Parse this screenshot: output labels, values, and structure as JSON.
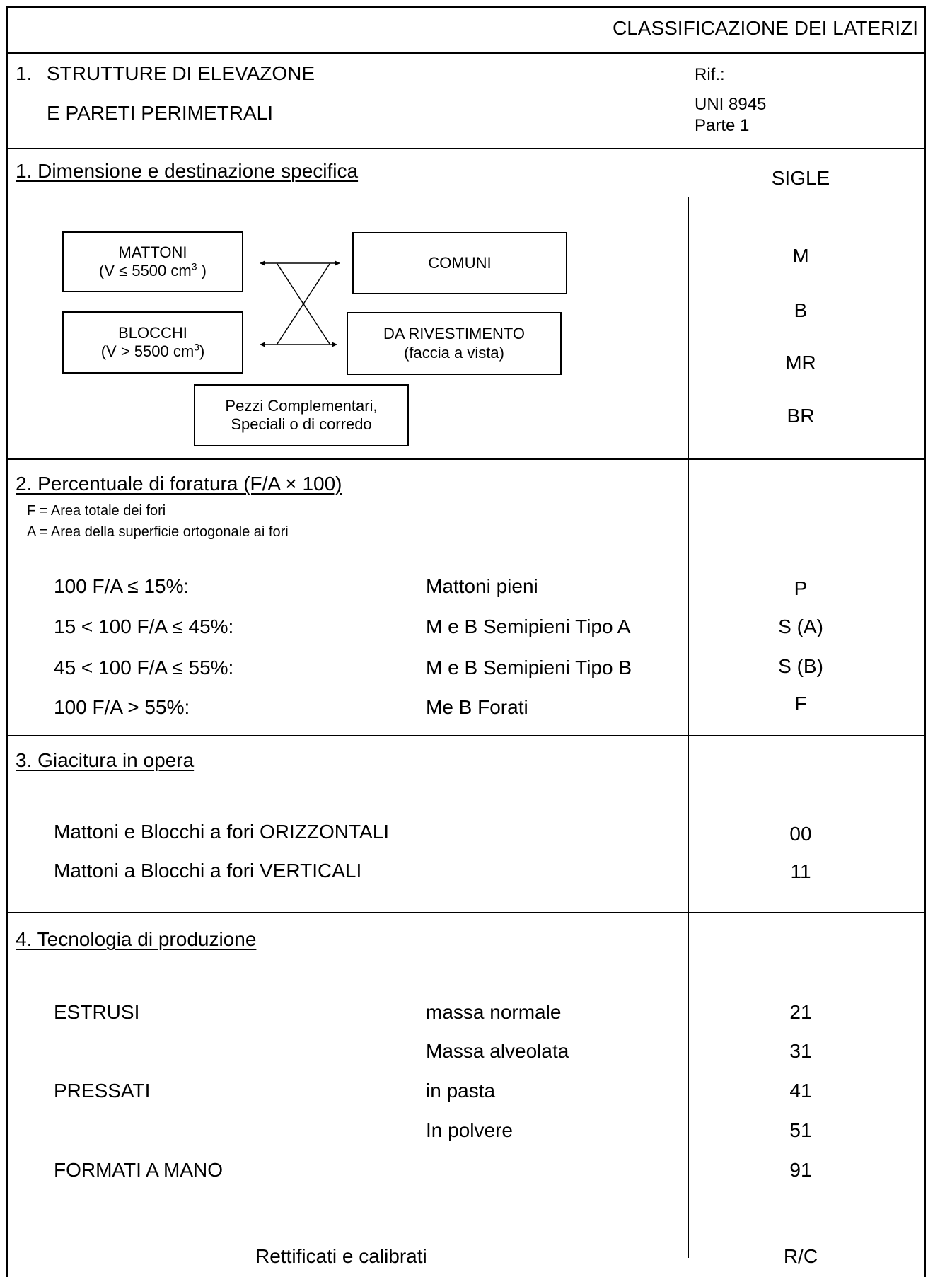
{
  "header": {
    "title": "CLASSIFICAZIONE DEI LATERIZI",
    "section_number": "1.",
    "section_line1": "STRUTTURE DI ELEVAZONE",
    "section_line2": "E PARETI PERIMETRALI",
    "ref_label": "Rif.:",
    "ref_standard": "UNI 8945",
    "ref_part": "Parte 1"
  },
  "sec1": {
    "title": "1.  Dimensione e destinazione specifica",
    "sigle_header": "SIGLE",
    "box_mattoni_line1": "MATTONI",
    "box_mattoni_line2_prefix": "(V ≤ 5500 cm",
    "box_mattoni_line2_sup": "3",
    "box_mattoni_line2_suffix": " )",
    "box_blocchi_line1": "BLOCCHI",
    "box_blocchi_line2_prefix": "(V > 5500 cm",
    "box_blocchi_line2_sup": "3",
    "box_blocchi_line2_suffix": ")",
    "box_comuni": "COMUNI",
    "box_rivestimento_line1": "DA RIVESTIMENTO",
    "box_rivestimento_line2": "(faccia a vista)",
    "box_pezzi_line1": "Pezzi Complementari,",
    "box_pezzi_line2": "Speciali o di corredo",
    "codes": [
      "M",
      "B",
      "MR",
      "BR"
    ]
  },
  "sec2": {
    "title": "2.  Percentuale di foratura (F/A × 100)",
    "note_f": "F = Area totale dei fori",
    "note_a": "A = Area della superficie ortogonale ai fori",
    "rows": [
      {
        "condition": "100 F/A ≤ 15%:",
        "description": "Mattoni pieni",
        "code": "P"
      },
      {
        "condition": "15 < 100 F/A ≤ 45%:",
        "description": "M e B Semipieni Tipo A",
        "code": "S (A)"
      },
      {
        "condition": "45 < 100 F/A ≤ 55%:",
        "description": "M e B Semipieni Tipo B",
        "code": "S (B)"
      },
      {
        "condition": "100 F/A > 55%:",
        "description": "Me B Forati",
        "code": "F"
      }
    ]
  },
  "sec3": {
    "title": "3.  Giacitura in opera",
    "rows": [
      {
        "description": "Mattoni e Blocchi a fori ORIZZONTALI",
        "code": "00"
      },
      {
        "description": "Mattoni a Blocchi a fori VERTICALI",
        "code": "11"
      }
    ]
  },
  "sec4": {
    "title": "4.  Tecnologia di produzione",
    "rows": [
      {
        "category": "ESTRUSI",
        "description": "massa normale",
        "code": "21"
      },
      {
        "category": "",
        "description": "Massa alveolata",
        "code": "31"
      },
      {
        "category": "PRESSATI",
        "description": "in pasta",
        "code": "41"
      },
      {
        "category": "",
        "description": "In polvere",
        "code": "51"
      },
      {
        "category": "FORMATI A MANO",
        "description": "",
        "code": "91"
      }
    ],
    "final_label": "Rettificati e calibrati",
    "final_code": "R/C"
  }
}
